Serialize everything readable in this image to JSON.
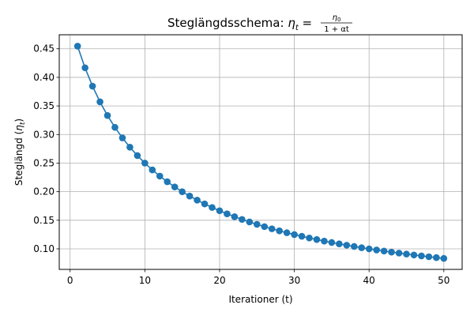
{
  "chart_data": {
    "type": "line",
    "title": "Steglängdsschema: η_t = η₀ / (1 + αt)",
    "title_parts": {
      "prefix": "Steglängdsschema: ",
      "eta": "η",
      "sub_t": "t",
      "equals": " = ",
      "num_eta": "η",
      "num_sub": "0",
      "den": "1 + αt"
    },
    "xlabel": "Iterationer (t)",
    "ylabel_parts": {
      "text": "Steglängd (",
      "eta": "η",
      "sub": "t",
      "close": ")"
    },
    "xlim": [
      -1.45,
      52.45
    ],
    "ylim": [
      0.0641,
      0.4745
    ],
    "xticks": [
      0,
      10,
      20,
      30,
      40,
      50
    ],
    "yticks": [
      0.1,
      0.15,
      0.2,
      0.25,
      0.3,
      0.35,
      0.4,
      0.45
    ],
    "xtick_labels": [
      "0",
      "10",
      "20",
      "30",
      "40",
      "50"
    ],
    "ytick_labels": [
      "0.10",
      "0.15",
      "0.20",
      "0.25",
      "0.30",
      "0.35",
      "0.40",
      "0.45"
    ],
    "grid": true,
    "marker": "circle",
    "colors": {
      "series": "#1f77b4",
      "grid": "#b0b0b0",
      "axis": "#000000"
    },
    "series": [
      {
        "x": [
          1,
          2,
          3,
          4,
          5,
          6,
          7,
          8,
          9,
          10,
          11,
          12,
          13,
          14,
          15,
          16,
          17,
          18,
          19,
          20,
          21,
          22,
          23,
          24,
          25,
          26,
          27,
          28,
          29,
          30,
          31,
          32,
          33,
          34,
          35,
          36,
          37,
          38,
          39,
          40,
          41,
          42,
          43,
          44,
          45,
          46,
          47,
          48,
          49,
          50
        ],
        "values": [
          0.4545,
          0.4167,
          0.3846,
          0.3571,
          0.3333,
          0.3125,
          0.2941,
          0.2778,
          0.2632,
          0.25,
          0.2381,
          0.2273,
          0.2174,
          0.2083,
          0.2,
          0.1923,
          0.1852,
          0.1786,
          0.1724,
          0.1667,
          0.1613,
          0.1563,
          0.1515,
          0.1471,
          0.1429,
          0.1389,
          0.1351,
          0.1316,
          0.1282,
          0.125,
          0.122,
          0.119,
          0.1163,
          0.1136,
          0.1111,
          0.1087,
          0.1064,
          0.1042,
          0.102,
          0.1,
          0.098,
          0.0962,
          0.0943,
          0.0926,
          0.0909,
          0.0893,
          0.0877,
          0.0862,
          0.0847,
          0.0833
        ]
      }
    ]
  }
}
